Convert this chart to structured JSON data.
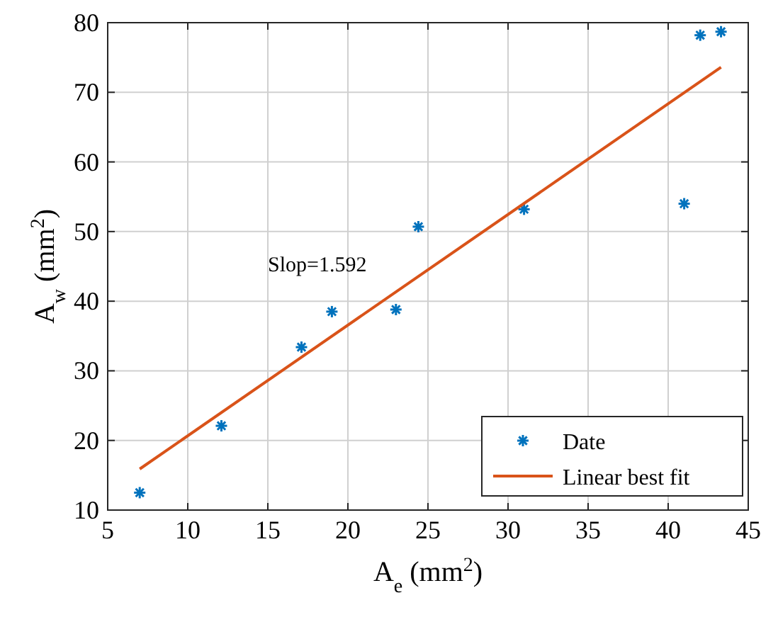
{
  "chart_data": {
    "type": "scatter",
    "xlabel": "A$_{e}$ (mm$^{2}$)",
    "ylabel": "A$_{w}$ (mm$^{2}$)",
    "xlim": [
      5,
      45
    ],
    "xticks": [
      5,
      10,
      15,
      20,
      25,
      30,
      35,
      40,
      45
    ],
    "ylim": [
      10,
      80
    ],
    "yticks": [
      10,
      20,
      30,
      40,
      50,
      60,
      70,
      80
    ],
    "grid": true,
    "legend": "bottom right",
    "annotations": [
      "Slop=1.592"
    ],
    "series": [
      {
        "name": "Date",
        "marker": "cross",
        "color": "#0072bd",
        "x": [
          7.0,
          12.1,
          17.1,
          19.0,
          23.0,
          24.4,
          31.0,
          41.0,
          42.0,
          43.3
        ],
        "values": [
          12.5,
          22.1,
          33.4,
          38.5,
          38.8,
          50.7,
          53.2,
          54.0,
          78.2,
          78.7
        ]
      },
      {
        "name": "Linear best fit",
        "type": "line",
        "color": "#d95319",
        "x": [
          7.0,
          43.3
        ],
        "values": [
          15.9,
          73.6
        ]
      }
    ]
  }
}
